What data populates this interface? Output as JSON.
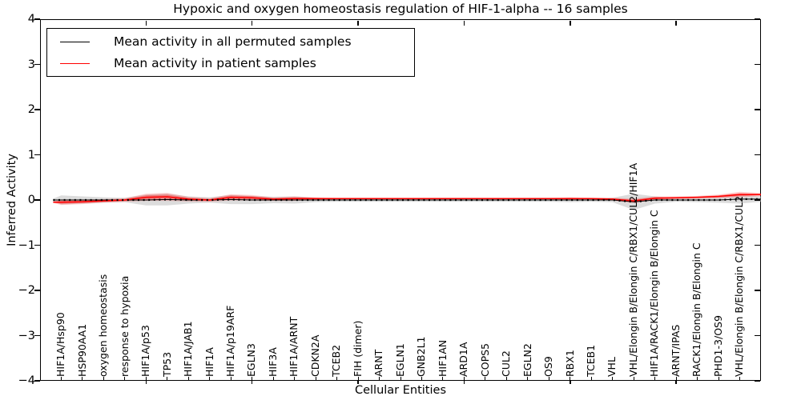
{
  "title": "Hypoxic and oxygen homeostasis regulation of HIF-1-alpha -- 16 samples",
  "legend": {
    "entries": [
      {
        "label": "Mean activity in all permuted samples",
        "color": "#000000"
      },
      {
        "label": "Mean activity in patient samples",
        "color": "#ff0000"
      }
    ]
  },
  "chart_data": {
    "type": "line",
    "title": "Hypoxic and oxygen homeostasis regulation of HIF-1-alpha -- 16 samples",
    "xlabel": "Cellular Entities",
    "ylabel": "Inferred Activity",
    "ylim": [
      -4,
      4
    ],
    "xlim": [
      0,
      34
    ],
    "yticks": [
      4,
      3,
      2,
      1,
      0,
      -1,
      -2,
      -3,
      -4
    ],
    "ytick_labels": [
      "4",
      "3",
      "2",
      "1",
      "0",
      "−1",
      "−2",
      "−3",
      "−4"
    ],
    "xticks_major": [
      5,
      10,
      15,
      20,
      25,
      30
    ],
    "grid": false,
    "legend_position": "upper left",
    "categories": [
      "HIF1A/Hsp90",
      "HSP90AA1",
      "oxygen homeostasis",
      "response to hypoxia",
      "HIF1A/p53",
      "TP53",
      "HIF1A/JAB1",
      "HIF1A",
      "HIF1A/p19ARF",
      "EGLN3",
      "HIF3A",
      "HIF1A/ARNT",
      "CDKN2A",
      "TCEB2",
      "FIH (dimer)",
      "ARNT",
      "EGLN1",
      "GNB2L1",
      "HIF1AN",
      "ARD1A",
      "COPS5",
      "CUL2",
      "EGLN2",
      "OS9",
      "RBX1",
      "TCEB1",
      "VHL",
      "VHL/Elongin B/Elongin C/RBX1/CUL2/HIF1A",
      "HIF1A/RACK1/Elongin B/Elongin C",
      "ARNT/IPAS",
      "RACK1/Elongin B/Elongin C",
      "PHD1-3/OS9",
      "VHL/Elongin B/Elongin C/RBX1/CUL2"
    ],
    "series": [
      {
        "name": "Mean activity in all permuted samples",
        "color": "#000000",
        "values": [
          0,
          0,
          0,
          0,
          0,
          0.01,
          0,
          0,
          0.01,
          0,
          0,
          0,
          0,
          0,
          0,
          0,
          0,
          0,
          0,
          0,
          0,
          0,
          0,
          0,
          0,
          0,
          0,
          -0.04,
          0,
          0,
          0,
          0,
          0.02
        ]
      },
      {
        "name": "Mean activity in patient samples",
        "color": "#ff0000",
        "values": [
          -0.05,
          -0.04,
          -0.02,
          0,
          0.06,
          0.07,
          0.02,
          0,
          0.06,
          0.05,
          0.02,
          0.03,
          0.03,
          0.03,
          0.03,
          0.03,
          0.03,
          0.03,
          0.03,
          0.03,
          0.03,
          0.03,
          0.03,
          0.03,
          0.03,
          0.03,
          0.02,
          -0.02,
          0.04,
          0.05,
          0.06,
          0.08,
          0.12
        ]
      }
    ],
    "bands": [
      {
        "name": "permuted samples range",
        "color": "#bfbfbf",
        "half_widths": [
          0.1,
          0.08,
          0.06,
          0.05,
          0.12,
          0.13,
          0.08,
          0.06,
          0.1,
          0.09,
          0.07,
          0.08,
          0.05,
          0.04,
          0.04,
          0.04,
          0.04,
          0.04,
          0.04,
          0.04,
          0.04,
          0.04,
          0.04,
          0.04,
          0.05,
          0.04,
          0.05,
          0.18,
          0.08,
          0.04,
          0.05,
          0.06,
          0.1
        ]
      },
      {
        "name": "patient samples range",
        "color": "#ff0000",
        "half_widths": [
          0.06,
          0.05,
          0.04,
          0.04,
          0.08,
          0.09,
          0.05,
          0.04,
          0.07,
          0.06,
          0.04,
          0.05,
          0.03,
          0.02,
          0.02,
          0.02,
          0.02,
          0.02,
          0.02,
          0.02,
          0.02,
          0.02,
          0.02,
          0.02,
          0.03,
          0.02,
          0.03,
          0.05,
          0.04,
          0.03,
          0.03,
          0.04,
          0.06
        ]
      }
    ]
  }
}
